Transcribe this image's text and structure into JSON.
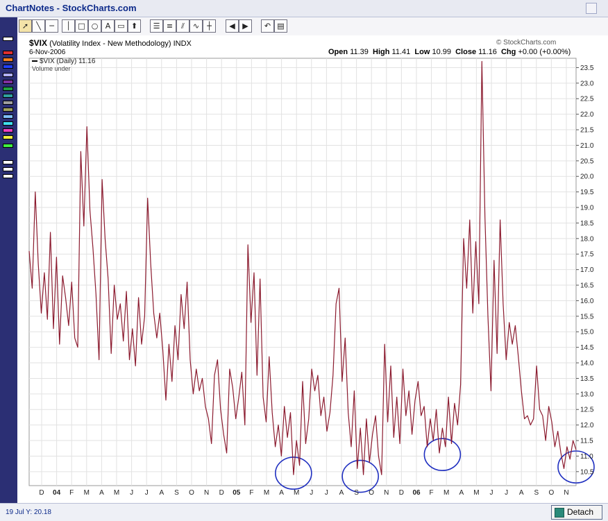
{
  "window": {
    "title": "ChartNotes - StockCharts.com"
  },
  "header": {
    "symbol": "$VIX",
    "name": "(Volatility Index - New Methodology)",
    "exchange": "INDX",
    "date": "6-Nov-2006",
    "copyright": "© StockCharts.com",
    "ohlc": {
      "open_label": "Open",
      "open": "11.39",
      "high_label": "High",
      "high": "11.41",
      "low_label": "Low",
      "low": "10.99",
      "close_label": "Close",
      "close": "11.16",
      "chg_label": "Chg",
      "chg": "+0.00 (+0.00%)"
    }
  },
  "legend": {
    "series": "$VIX (Daily) 11.16",
    "volume": "Volume under"
  },
  "toolbar": {
    "tools": [
      "pointer-tool",
      "line-tool",
      "horizontal-line-tool",
      "vertical-line-tool",
      "rectangle-tool",
      "circle-tool",
      "text-tool",
      "callout-tool",
      "arrow-tool",
      "fibonacci-tool",
      "channel-tool",
      "pitchfork-tool",
      "trendline-tool",
      "measure-tool",
      "back-tool",
      "forward-tool",
      "undo-tool",
      "clear-tool"
    ]
  },
  "status": {
    "cursor": "19 Jul Y: 20.18"
  },
  "detach_label": "Detach",
  "colors": {
    "line": "#8b1a2e",
    "grid": "#e2e2e2",
    "circle": "#1f2fc0",
    "sidebar": "#2b2f74"
  },
  "chart_data": {
    "type": "line",
    "yaxis_side": "right",
    "ylim": [
      10.05,
      23.8
    ],
    "yticks": [
      10.5,
      11.0,
      11.5,
      12.0,
      12.5,
      13.0,
      13.5,
      14.0,
      14.5,
      15.0,
      15.5,
      16.0,
      16.5,
      17.0,
      17.5,
      18.0,
      18.5,
      19.0,
      19.5,
      20.0,
      20.5,
      21.0,
      21.5,
      22.0,
      22.5,
      23.0,
      23.5
    ],
    "xticks": [
      "D",
      "04",
      "F",
      "M",
      "A",
      "M",
      "J",
      "J",
      "A",
      "S",
      "O",
      "N",
      "D",
      "05",
      "F",
      "M",
      "A",
      "M",
      "J",
      "J",
      "A",
      "S",
      "O",
      "N",
      "D",
      "06",
      "F",
      "M",
      "A",
      "M",
      "J",
      "J",
      "A",
      "S",
      "O",
      "N"
    ],
    "series": [
      {
        "values": [
          17.6,
          16.4,
          19.5,
          17.2,
          15.6,
          16.9,
          15.4,
          18.2,
          15.1,
          17.4,
          14.6,
          16.8,
          16.1,
          15.2,
          16.6,
          14.8,
          14.5,
          20.8,
          18.4,
          21.6,
          18.9,
          17.7,
          16.2,
          14.1,
          19.9,
          18.0,
          16.7,
          14.3,
          16.5,
          15.4,
          15.9,
          14.7,
          16.3,
          14.1,
          15.1,
          13.9,
          16.1,
          14.6,
          15.5,
          19.3,
          17.2,
          15.6,
          14.8,
          15.6,
          14.4,
          12.8,
          14.6,
          13.4,
          15.2,
          14.1,
          16.2,
          15.1,
          16.6,
          14.1,
          13.0,
          13.8,
          13.1,
          13.5,
          12.6,
          12.2,
          11.4,
          13.6,
          14.1,
          12.5,
          11.7,
          11.1,
          13.8,
          13.2,
          12.2,
          12.9,
          13.7,
          12.0,
          17.8,
          15.3,
          16.9,
          13.6,
          16.7,
          12.9,
          12.1,
          14.2,
          12.4,
          11.3,
          12.0,
          11.0,
          12.6,
          11.6,
          12.4,
          10.4,
          11.5,
          10.7,
          13.4,
          11.4,
          12.2,
          13.8,
          13.1,
          13.6,
          12.3,
          12.9,
          11.8,
          12.4,
          13.6,
          15.9,
          16.4,
          13.4,
          14.8,
          12.4,
          11.3,
          13.1,
          10.6,
          11.9,
          10.4,
          12.2,
          10.8,
          11.7,
          12.3,
          11.0,
          10.4,
          14.6,
          12.1,
          13.9,
          11.6,
          12.9,
          11.4,
          13.8,
          12.3,
          13.1,
          11.7,
          12.8,
          13.4,
          12.3,
          12.6,
          11.3,
          12.2,
          11.5,
          12.5,
          11.1,
          11.9,
          11.3,
          12.9,
          11.4,
          12.7,
          12.0,
          13.3,
          18.0,
          16.4,
          18.6,
          15.6,
          17.9,
          15.9,
          23.7,
          18.7,
          15.5,
          13.1,
          17.3,
          14.3,
          18.6,
          15.9,
          14.1,
          15.3,
          14.6,
          15.2,
          14.2,
          13.1,
          12.2,
          12.3,
          12.0,
          12.2,
          13.9,
          12.5,
          12.3,
          11.5,
          12.6,
          12.1,
          11.3,
          11.8,
          11.1,
          10.6,
          11.3,
          10.9,
          11.5,
          11.2
        ]
      }
    ],
    "annotations": [
      {
        "type": "circle",
        "x_index": 87,
        "y": 10.45
      },
      {
        "type": "circle",
        "x_index": 109,
        "y": 10.35
      },
      {
        "type": "circle",
        "x_index": 136,
        "y": 11.05
      },
      {
        "type": "circle",
        "x_index": 180,
        "y": 10.65
      }
    ]
  }
}
